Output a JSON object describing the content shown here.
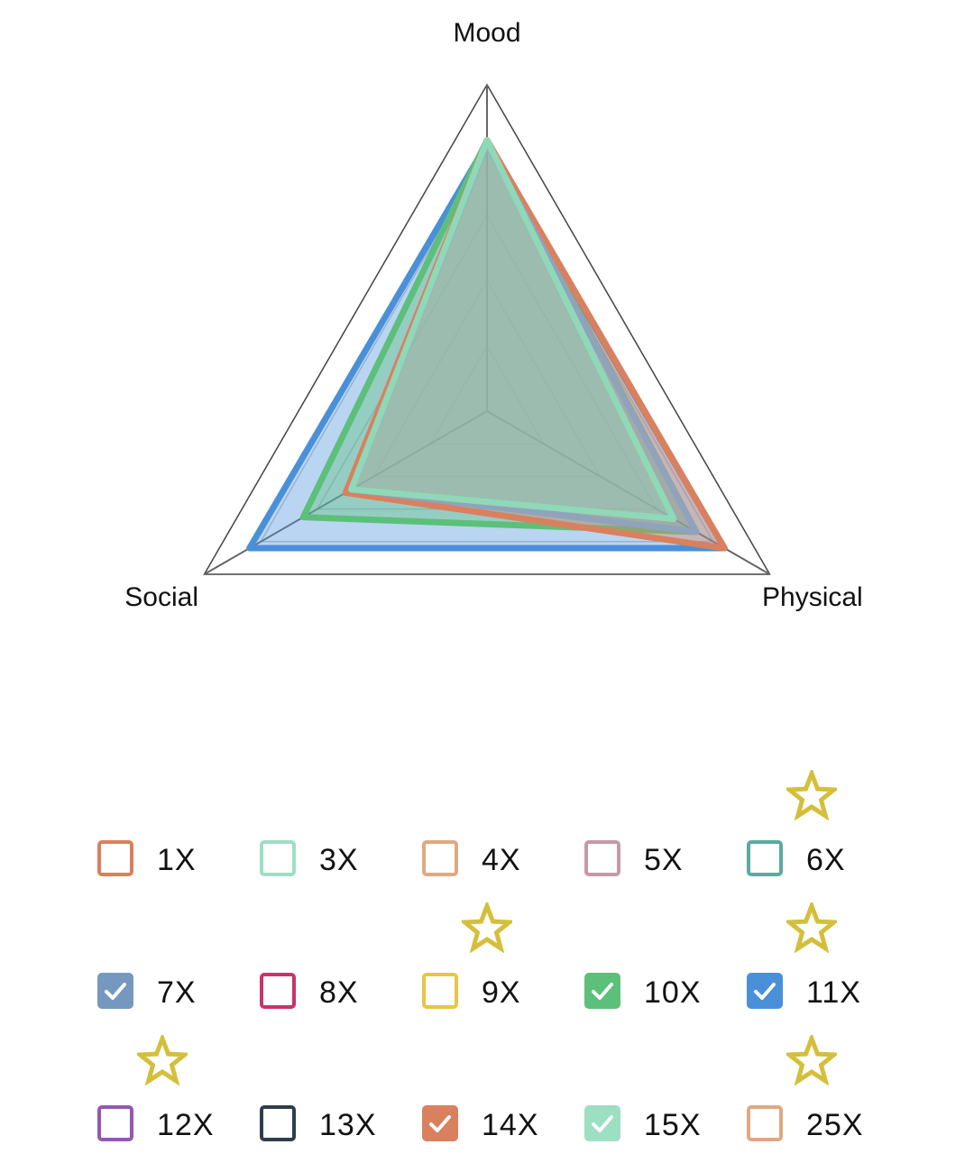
{
  "chart_data": {
    "type": "radar",
    "axes": [
      "Mood",
      "Physical",
      "Social"
    ],
    "range": [
      0,
      100
    ],
    "grid_levels": 5,
    "series": [
      {
        "name": "11X",
        "color": "#4a90d9",
        "values": [
          82,
          84,
          84
        ]
      },
      {
        "name": "10X",
        "color": "#5cc07a",
        "values": [
          83,
          74,
          65
        ]
      },
      {
        "name": "14X",
        "color": "#d9805f",
        "values": [
          83,
          84,
          50
        ]
      },
      {
        "name": "7X",
        "color": "#8fa3bd",
        "values": [
          82,
          74,
          48
        ]
      },
      {
        "name": "15X",
        "color": "#8fd8b8",
        "values": [
          83,
          66,
          48
        ]
      }
    ]
  },
  "legend": {
    "items": [
      {
        "label": "1X",
        "color": "#d9805f",
        "checked": false,
        "starred": false
      },
      {
        "label": "3X",
        "color": "#9ddfc3",
        "checked": false,
        "starred": false
      },
      {
        "label": "4X",
        "color": "#e0a880",
        "checked": false,
        "starred": false
      },
      {
        "label": "5X",
        "color": "#c49aa8",
        "checked": false,
        "starred": false
      },
      {
        "label": "6X",
        "color": "#5aaba0",
        "checked": false,
        "starred": true
      },
      {
        "label": "7X",
        "color": "#7599be",
        "checked": true,
        "starred": false
      },
      {
        "label": "8X",
        "color": "#c8336c",
        "checked": false,
        "starred": false
      },
      {
        "label": "9X",
        "color": "#e8c547",
        "checked": false,
        "starred": true
      },
      {
        "label": "10X",
        "color": "#5cc07a",
        "checked": true,
        "starred": false
      },
      {
        "label": "11X",
        "color": "#4a90d9",
        "checked": true,
        "starred": true
      },
      {
        "label": "12X",
        "color": "#9457b8",
        "checked": false,
        "starred": true
      },
      {
        "label": "13X",
        "color": "#2f3e4e",
        "checked": false,
        "starred": false
      },
      {
        "label": "14X",
        "color": "#d9805f",
        "checked": true,
        "starred": false
      },
      {
        "label": "15X",
        "color": "#9ddfc3",
        "checked": true,
        "starred": false
      },
      {
        "label": "25X",
        "color": "#e0a880",
        "checked": false,
        "starred": true
      }
    ],
    "star_color": "#d4bf3c"
  }
}
